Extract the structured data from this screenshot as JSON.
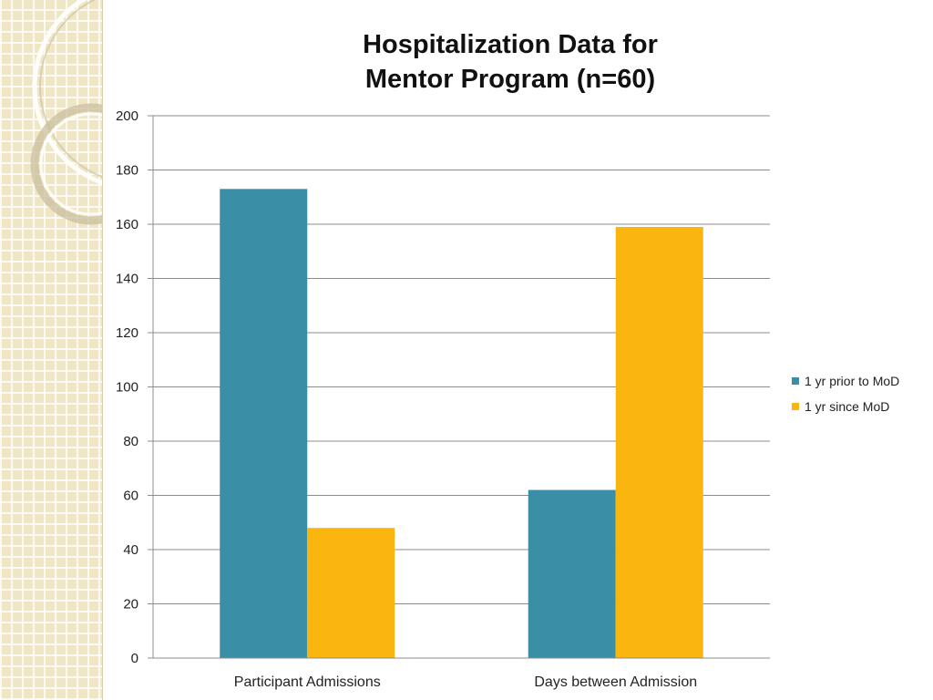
{
  "chart_data": {
    "type": "bar",
    "title": [
      "Hospitalization Data for",
      "Mentor Program (n=60)"
    ],
    "xlabel": "",
    "ylabel": "",
    "ylim": [
      0,
      200
    ],
    "yticks": [
      0,
      20,
      40,
      60,
      80,
      100,
      120,
      140,
      160,
      180,
      200
    ],
    "grid": true,
    "legend_position": "right",
    "categories": [
      "Participant Admissions",
      "Days between Admission"
    ],
    "series": [
      {
        "name": "1 yr prior to MoD",
        "color": "#3a8fa6",
        "values": [
          173,
          62
        ]
      },
      {
        "name": "1 yr since MoD",
        "color": "#fbb50f",
        "values": [
          48,
          159
        ]
      }
    ]
  }
}
